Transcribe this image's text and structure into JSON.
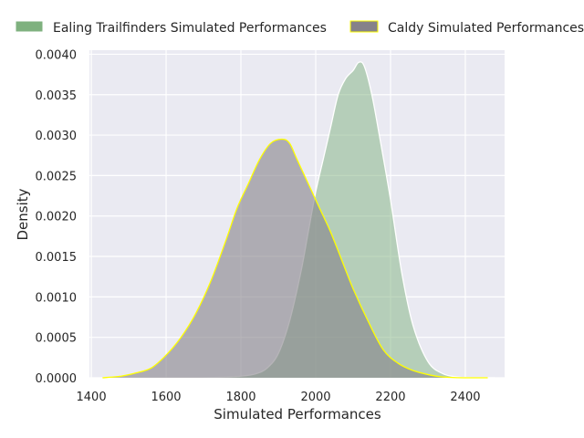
{
  "chart_data": {
    "type": "area",
    "title": "",
    "xlabel": "Simulated Performances",
    "ylabel": "Density",
    "xlim": [
      1395,
      2505
    ],
    "ylim": [
      0,
      0.00405
    ],
    "x_ticks": [
      1400,
      1600,
      1800,
      2000,
      2200,
      2400
    ],
    "x_tick_labels": [
      "1400",
      "1600",
      "1800",
      "2000",
      "2200",
      "2400"
    ],
    "y_ticks": [
      0,
      0.0005,
      0.001,
      0.0015,
      0.002,
      0.0025,
      0.003,
      0.0035,
      0.004
    ],
    "y_tick_labels": [
      "0.0000",
      "0.0005",
      "0.0010",
      "0.0015",
      "0.0020",
      "0.0025",
      "0.0030",
      "0.0035",
      "0.0040"
    ],
    "grid": true,
    "legend_position": "top, above plot, two columns",
    "series": [
      {
        "name": "Ealing Trailfinders Simulated Performances",
        "fill_color": "#7fb17f",
        "line_color": "#ffffff",
        "fill_opacity": 0.5,
        "x": [
          1700,
          1760,
          1800,
          1840,
          1870,
          1900,
          1930,
          1960,
          1980,
          2000,
          2020,
          2040,
          2060,
          2080,
          2100,
          2115,
          2130,
          2150,
          2170,
          2200,
          2230,
          2260,
          2300,
          2340,
          2380,
          2420,
          2480
        ],
        "y": [
          0.0,
          1e-05,
          2e-05,
          5e-05,
          0.00012,
          0.0003,
          0.0007,
          0.0013,
          0.0018,
          0.0023,
          0.0027,
          0.0031,
          0.0035,
          0.0037,
          0.0038,
          0.0039,
          0.00385,
          0.0035,
          0.003,
          0.0022,
          0.0013,
          0.00065,
          0.0002,
          5e-05,
          1e-05,
          0.0,
          0.0
        ]
      },
      {
        "name": "Caldy Simulated Performances",
        "fill_color": "#868289",
        "line_color": "#ffff00",
        "fill_opacity": 0.6,
        "x": [
          1430,
          1480,
          1520,
          1560,
          1600,
          1640,
          1680,
          1720,
          1760,
          1790,
          1820,
          1850,
          1880,
          1910,
          1930,
          1950,
          1980,
          2010,
          2040,
          2070,
          2100,
          2140,
          2180,
          2220,
          2260,
          2300,
          2340,
          2400,
          2460
        ],
        "y": [
          0.0,
          2e-05,
          6e-05,
          0.00012,
          0.00028,
          0.0005,
          0.0008,
          0.0012,
          0.0017,
          0.0021,
          0.0024,
          0.0027,
          0.0029,
          0.00295,
          0.0029,
          0.0027,
          0.0024,
          0.0021,
          0.0018,
          0.00145,
          0.0011,
          0.0007,
          0.00035,
          0.00018,
          9e-05,
          4e-05,
          1e-05,
          0.0,
          0.0
        ]
      }
    ]
  }
}
